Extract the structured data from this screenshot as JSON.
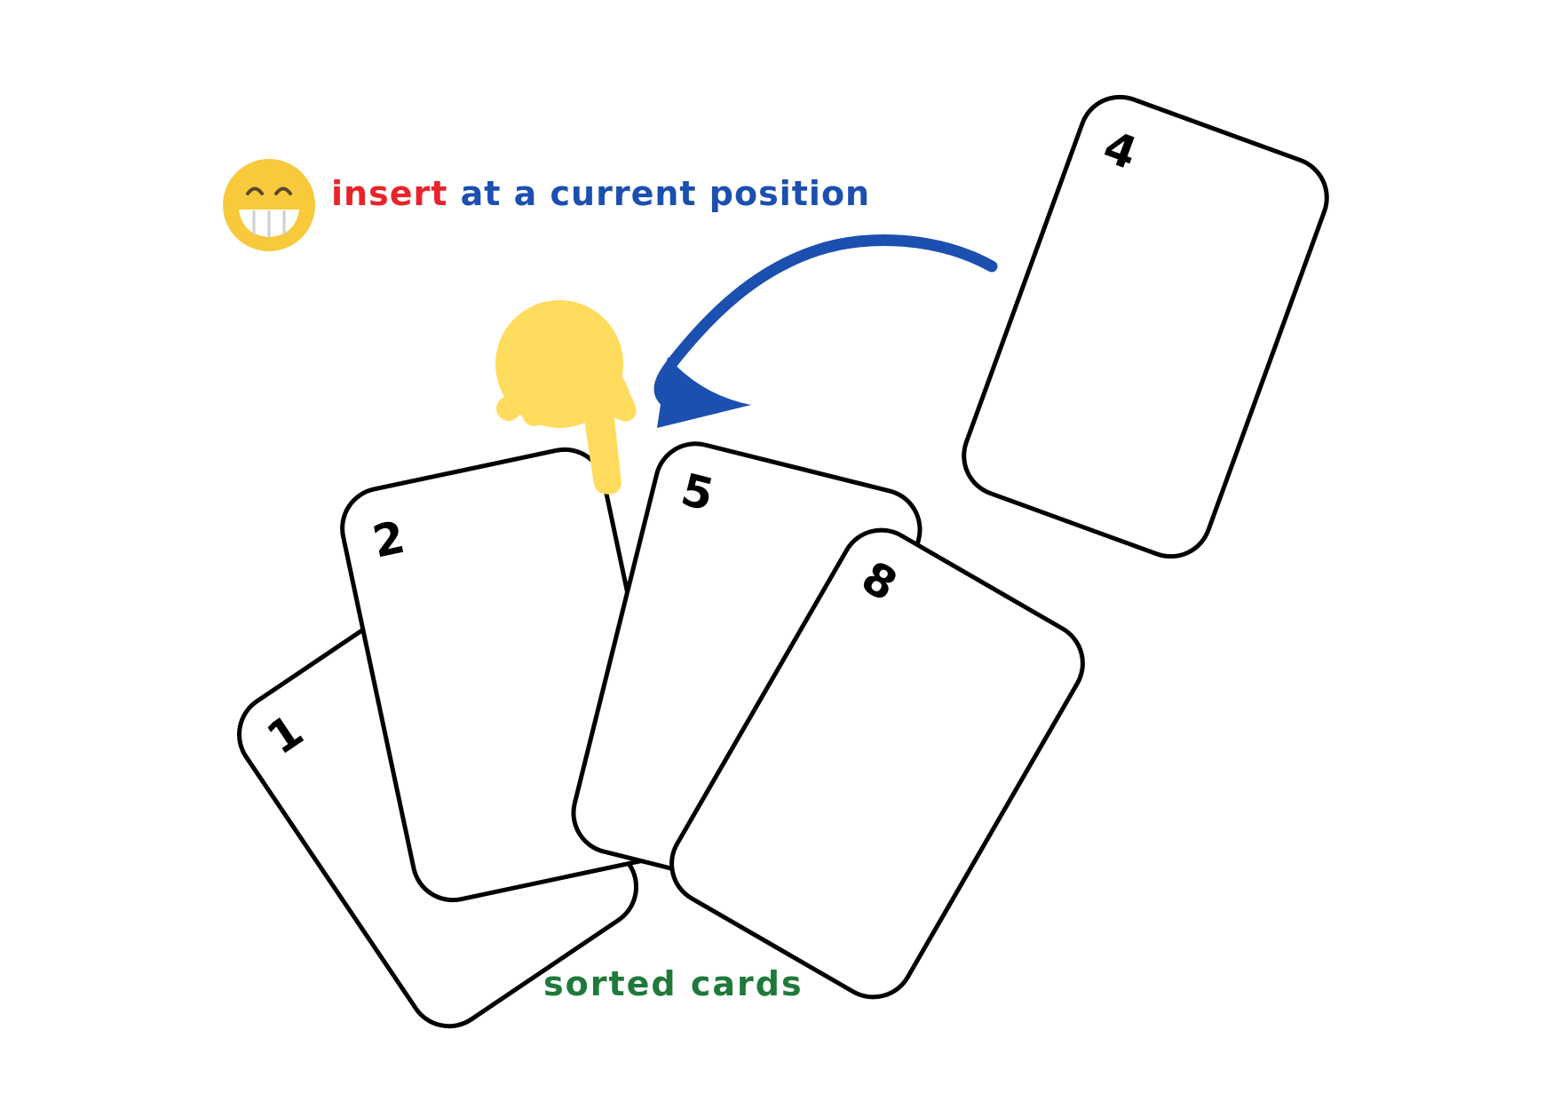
{
  "instruction": {
    "verb": "insert",
    "rest": "at a current position",
    "verb_color": "#e8242b",
    "rest_color": "#1b4fb0"
  },
  "sorted_label": {
    "text": "sorted cards",
    "color": "#1f7a3a"
  },
  "cards": {
    "sorted": [
      "1",
      "2",
      "5",
      "8"
    ],
    "incoming": "4"
  },
  "icons": {
    "emoji": "grinning-face-icon",
    "pointer": "pointing-hand-icon",
    "arrow": "curved-arrow-icon"
  },
  "colors": {
    "emoji_yellow": "#f7c93b",
    "hand_yellow": "#ffdc5e",
    "arrow_blue": "#1b4fb0",
    "card_stroke": "#000000"
  }
}
